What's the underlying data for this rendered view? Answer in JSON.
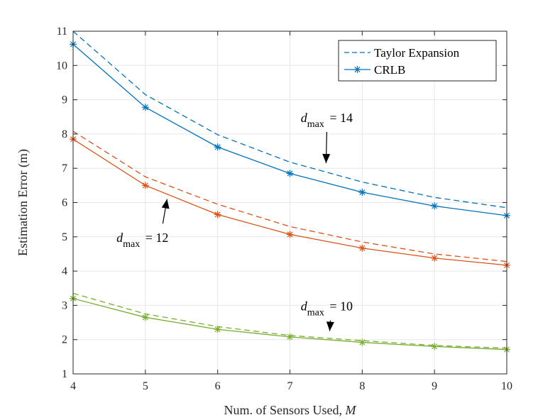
{
  "chart_data": {
    "type": "line",
    "title": "",
    "xlabel": "Num. of Sensors Used, ",
    "xlabel_var": "M",
    "ylabel": "Estimation Error (m)",
    "x": [
      4,
      5,
      6,
      7,
      8,
      9,
      10
    ],
    "xlim": [
      4,
      10
    ],
    "ylim": [
      1,
      11
    ],
    "xticks": [
      4,
      5,
      6,
      7,
      8,
      9,
      10
    ],
    "yticks": [
      1,
      2,
      3,
      4,
      5,
      6,
      7,
      8,
      9,
      10,
      11
    ],
    "grid": true,
    "legend": {
      "position": "top-right",
      "entries": [
        {
          "label": "Taylor Expansion",
          "style": "dashed"
        },
        {
          "label": "CRLB",
          "style": "solid-star"
        }
      ]
    },
    "series": [
      {
        "name": "Taylor Expansion",
        "group": "d_max = 14",
        "color": "#0072BD",
        "style": "dashed",
        "values": [
          11.0,
          9.15,
          7.98,
          7.18,
          6.6,
          6.15,
          5.85
        ]
      },
      {
        "name": "CRLB",
        "group": "d_max = 14",
        "color": "#0072BD",
        "style": "solid-star",
        "values": [
          10.62,
          8.78,
          7.62,
          6.85,
          6.3,
          5.9,
          5.62
        ]
      },
      {
        "name": "Taylor Expansion",
        "group": "d_max = 12",
        "color": "#D95319",
        "style": "dashed",
        "values": [
          8.08,
          6.75,
          5.95,
          5.3,
          4.85,
          4.5,
          4.28
        ]
      },
      {
        "name": "CRLB",
        "group": "d_max = 12",
        "color": "#D95319",
        "style": "solid-star",
        "values": [
          7.85,
          6.5,
          5.65,
          5.07,
          4.67,
          4.38,
          4.17
        ]
      },
      {
        "name": "Taylor Expansion",
        "group": "d_max = 10",
        "color": "#77AC30",
        "style": "dashed",
        "values": [
          3.35,
          2.75,
          2.38,
          2.12,
          1.97,
          1.83,
          1.75
        ]
      },
      {
        "name": "CRLB",
        "group": "d_max = 10",
        "color": "#77AC30",
        "style": "solid-star",
        "values": [
          3.2,
          2.65,
          2.3,
          2.08,
          1.92,
          1.8,
          1.71
        ]
      }
    ],
    "annotations": [
      {
        "var": "d",
        "sub": "max",
        "text": " = 14",
        "x": 7.15,
        "y": 8.35,
        "arrow_to": [
          7.5,
          7.15
        ]
      },
      {
        "var": "d",
        "sub": "max",
        "text": " = 12",
        "x": 4.6,
        "y": 4.85,
        "arrow_to": [
          5.3,
          6.1
        ]
      },
      {
        "var": "d",
        "sub": "max",
        "text": " = 10",
        "x": 7.15,
        "y": 2.85,
        "arrow_to": [
          7.55,
          2.25
        ]
      }
    ]
  }
}
